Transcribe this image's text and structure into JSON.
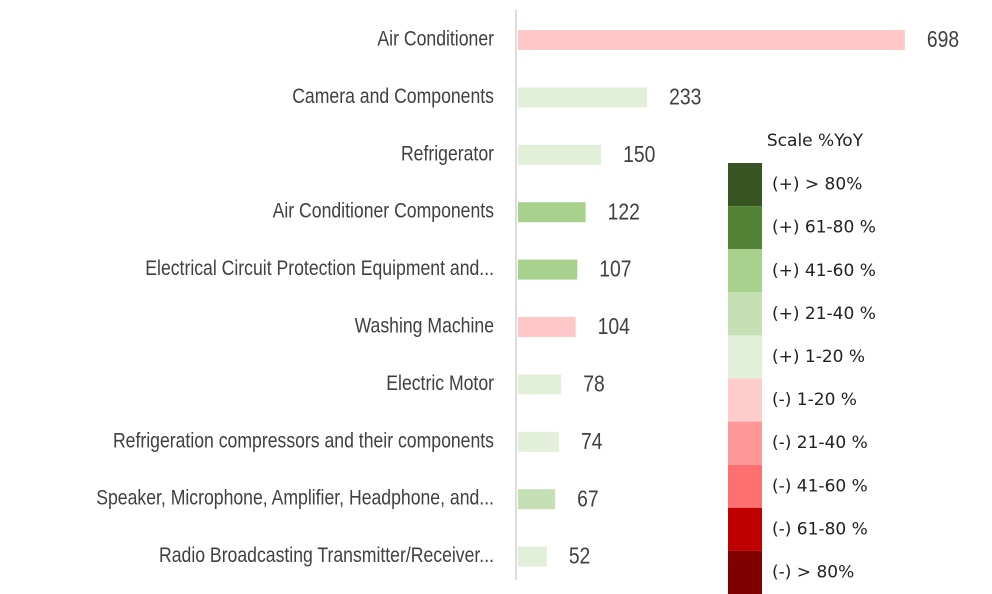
{
  "chart_data": {
    "type": "bar",
    "categories": [
      "Air Conditioner",
      "Camera and Components",
      "Refrigerator",
      "Air Conditioner Components",
      "Electrical Circuit Protection Equipment and...",
      "Washing Machine",
      "Electric Motor",
      "Refrigeration compressors and their components",
      "Speaker, Microphone, Amplifier, Headphone, and...",
      "Radio Broadcasting Transmitter/Receiver..."
    ],
    "values": [
      698,
      233,
      150,
      122,
      107,
      104,
      78,
      74,
      67,
      52
    ],
    "colors": [
      "#ffc7c7",
      "#e2f0d9",
      "#e2f0d9",
      "#a9d18e",
      "#a9d18e",
      "#ffc7c7",
      "#e2f0d9",
      "#e2f0d9",
      "#c5e0b4",
      "#e2f0d9"
    ],
    "xlim": [
      0,
      700
    ],
    "legend": {
      "title": "Scale %YoY",
      "items": [
        {
          "label": "(+) > 80%",
          "color": "#375623"
        },
        {
          "label": "(+) 61-80 %",
          "color": "#548235"
        },
        {
          "label": "(+) 41-60 %",
          "color": "#a9d18e"
        },
        {
          "label": "(+) 21-40 %",
          "color": "#c5e0b4"
        },
        {
          "label": "(+) 1-20 %",
          "color": "#e2f0d9"
        },
        {
          "label": "(-) 1-20 %",
          "color": "#ffcccc"
        },
        {
          "label": "(-) 21-40 %",
          "color": "#ff9999"
        },
        {
          "label": "(-) 41-60 %",
          "color": "#ff7070"
        },
        {
          "label": "(-) 61-80 %",
          "color": "#c00000"
        },
        {
          "label": "(-) > 80%",
          "color": "#800000"
        }
      ]
    }
  }
}
